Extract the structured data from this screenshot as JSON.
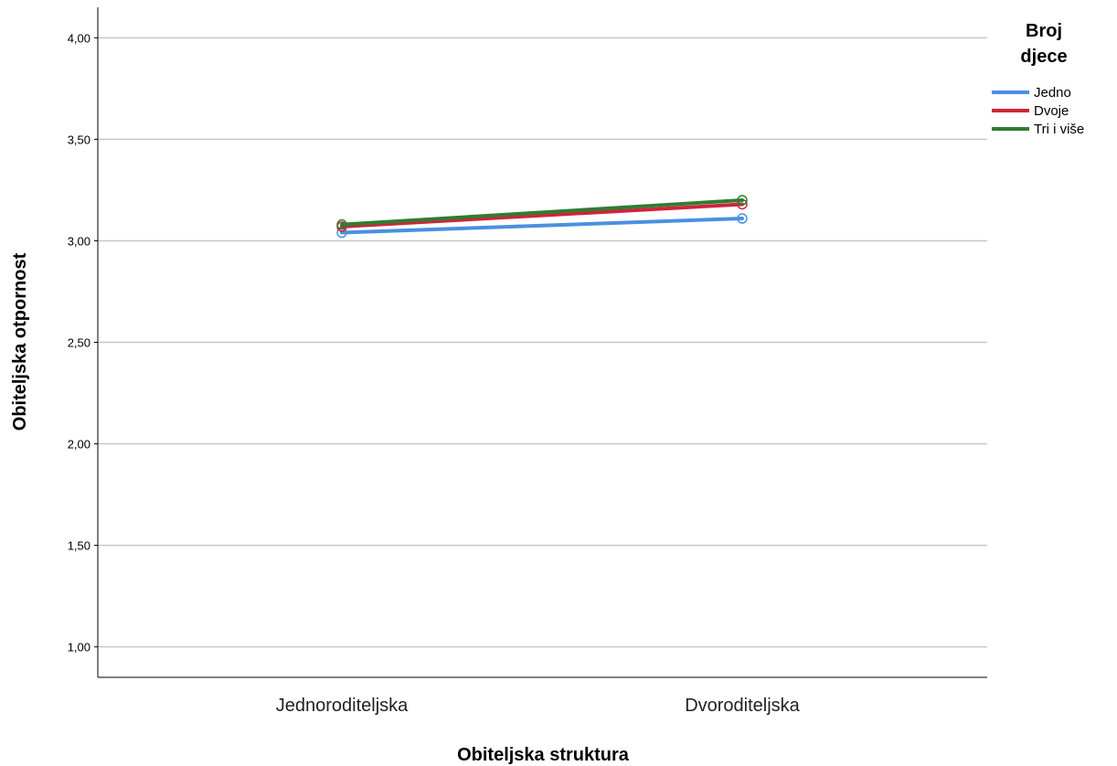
{
  "chart_data": {
    "type": "line",
    "title": "",
    "xlabel": "Obiteljska struktura",
    "ylabel": "Obiteljska otpornost",
    "categories": [
      "Jednoroditeljska",
      "Dvoroditeljska"
    ],
    "ylim": [
      0.85,
      4.15
    ],
    "yticks": [
      1.0,
      1.5,
      2.0,
      2.5,
      3.0,
      3.5,
      4.0
    ],
    "ytick_labels": [
      "1,00",
      "1,50",
      "2,00",
      "2,50",
      "3,00",
      "3,50",
      "4,00"
    ],
    "grid": "horizontal",
    "legend": {
      "title_lines": [
        "Broj",
        "djece"
      ],
      "placement": "right"
    },
    "series": [
      {
        "name": "Jedno",
        "color": "#4a90e2",
        "values": [
          3.04,
          3.11
        ]
      },
      {
        "name": "Dvoje",
        "color": "#d0243a",
        "values": [
          3.07,
          3.18
        ]
      },
      {
        "name": "Tri i više",
        "color": "#2e7d32",
        "values": [
          3.08,
          3.2
        ]
      }
    ]
  }
}
